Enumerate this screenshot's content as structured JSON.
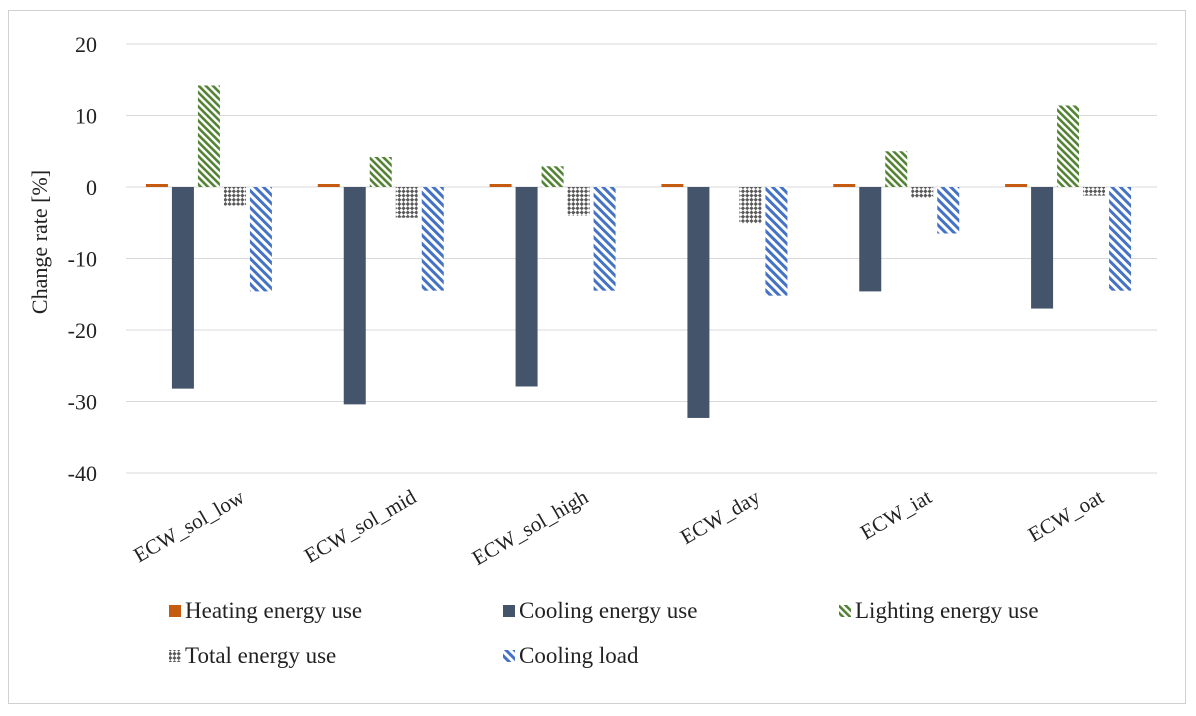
{
  "chart_data": {
    "type": "bar",
    "title": "",
    "xlabel": "",
    "ylabel": "Change rate [%]",
    "ylim": [
      -40,
      20
    ],
    "yticks": [
      20,
      10,
      0,
      -10,
      -20,
      -30,
      -40
    ],
    "grid": true,
    "legend_position": "bottom",
    "categories": [
      "ECW_sol_low",
      "ECW_sol_mid",
      "ECW_sol_high",
      "ECW_day",
      "ECW_iat",
      "ECW_oat"
    ],
    "series": [
      {
        "name": "Heating energy use",
        "color": "#c55a11",
        "pattern": "solid",
        "values": [
          0.3,
          0.3,
          0.3,
          0.3,
          0.3,
          0.3
        ]
      },
      {
        "name": "Cooling energy use",
        "color": "#44546a",
        "pattern": "solid",
        "values": [
          -28.2,
          -30.4,
          -27.9,
          -32.3,
          -14.6,
          -17.0
        ]
      },
      {
        "name": "Lighting energy use",
        "color": "#548235",
        "pattern": "diagonal",
        "values": [
          14.2,
          4.2,
          2.9,
          0.0,
          5.0,
          11.4
        ]
      },
      {
        "name": "Total energy use",
        "color": "#595959",
        "pattern": "checker",
        "values": [
          -2.6,
          -4.3,
          -4.0,
          -5.1,
          -1.5,
          -1.2
        ]
      },
      {
        "name": "Cooling load",
        "color": "#4472c4",
        "pattern": "diagonal",
        "values": [
          -14.6,
          -14.5,
          -14.5,
          -15.2,
          -6.5,
          -14.5
        ]
      }
    ]
  }
}
